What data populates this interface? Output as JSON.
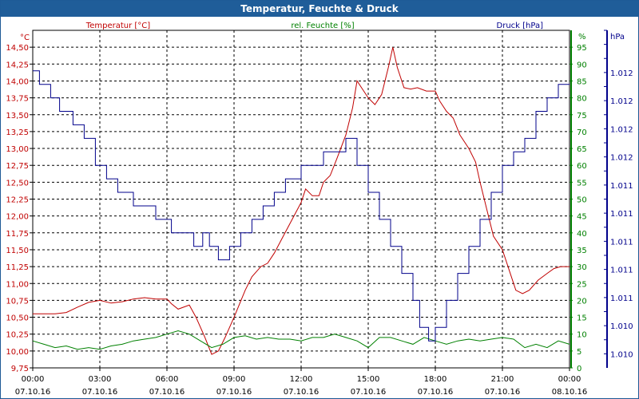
{
  "chart_data": {
    "type": "line",
    "title": "Temperatur, Feuchte & Druck",
    "x_ticks": [
      {
        "time": "00:00",
        "date": "07.10.16"
      },
      {
        "time": "03:00",
        "date": "07.10.16"
      },
      {
        "time": "06:00",
        "date": "07.10.16"
      },
      {
        "time": "09:00",
        "date": "07.10.16"
      },
      {
        "time": "12:00",
        "date": "07.10.16"
      },
      {
        "time": "15:00",
        "date": "07.10.16"
      },
      {
        "time": "18:00",
        "date": "07.10.16"
      },
      {
        "time": "21:00",
        "date": "07.10.16"
      },
      {
        "time": "00:00",
        "date": "08.10.16"
      }
    ],
    "xlim_hours": [
      0,
      24
    ],
    "axes": {
      "temperature": {
        "label": "Temperatur [°C]",
        "unit": "°C",
        "color": "#c00000",
        "ylim": [
          9.75,
          14.75
        ],
        "ticks": [
          "9,75",
          "10,00",
          "10,25",
          "10,50",
          "10,75",
          "11,00",
          "11,25",
          "11,50",
          "11,75",
          "12,00",
          "12,25",
          "12,50",
          "12,75",
          "13,00",
          "13,25",
          "13,50",
          "13,75",
          "14,00",
          "14,25",
          "14,50"
        ]
      },
      "humidity": {
        "label": "rel. Feuchte [%]",
        "unit": "%",
        "color": "#008000",
        "ylim": [
          0,
          100
        ],
        "ticks": [
          "0",
          "5",
          "10",
          "15",
          "20",
          "25",
          "30",
          "35",
          "40",
          "45",
          "50",
          "55",
          "60",
          "65",
          "70",
          "75",
          "80",
          "85",
          "90",
          "95"
        ]
      },
      "pressure": {
        "label": "Druck [hPa]",
        "unit": "hPa",
        "color": "#00008b",
        "ticks": [
          "1.010",
          "1.010",
          "1.011",
          "1.011",
          "1.011",
          "1.011",
          "1.011",
          "1.012",
          "1.012",
          "1.012",
          "1.012"
        ]
      }
    },
    "series": [
      {
        "name": "Temperatur",
        "axis": "temperature",
        "color": "#c00000",
        "points": [
          [
            0,
            10.55
          ],
          [
            1,
            10.55
          ],
          [
            1.5,
            10.57
          ],
          [
            2,
            10.65
          ],
          [
            2.5,
            10.72
          ],
          [
            3,
            10.75
          ],
          [
            3.5,
            10.71
          ],
          [
            4,
            10.73
          ],
          [
            4.5,
            10.77
          ],
          [
            5,
            10.79
          ],
          [
            5.5,
            10.77
          ],
          [
            6,
            10.77
          ],
          [
            6.2,
            10.7
          ],
          [
            6.5,
            10.62
          ],
          [
            7,
            10.68
          ],
          [
            7.3,
            10.5
          ],
          [
            7.7,
            10.2
          ],
          [
            8,
            9.95
          ],
          [
            8.3,
            10.0
          ],
          [
            8.6,
            10.2
          ],
          [
            9,
            10.5
          ],
          [
            9.5,
            10.9
          ],
          [
            9.8,
            11.1
          ],
          [
            10.2,
            11.25
          ],
          [
            10.5,
            11.3
          ],
          [
            10.8,
            11.45
          ],
          [
            11.2,
            11.7
          ],
          [
            11.6,
            11.95
          ],
          [
            12,
            12.2
          ],
          [
            12.2,
            12.4
          ],
          [
            12.5,
            12.3
          ],
          [
            12.8,
            12.3
          ],
          [
            13,
            12.5
          ],
          [
            13.3,
            12.6
          ],
          [
            13.6,
            12.85
          ],
          [
            14,
            13.2
          ],
          [
            14.3,
            13.6
          ],
          [
            14.5,
            14.0
          ],
          [
            14.8,
            13.85
          ],
          [
            15,
            13.75
          ],
          [
            15.3,
            13.65
          ],
          [
            15.6,
            13.8
          ],
          [
            15.9,
            14.2
          ],
          [
            16.1,
            14.5
          ],
          [
            16.3,
            14.2
          ],
          [
            16.6,
            13.9
          ],
          [
            16.9,
            13.88
          ],
          [
            17.2,
            13.9
          ],
          [
            17.6,
            13.85
          ],
          [
            18,
            13.85
          ],
          [
            18.2,
            13.7
          ],
          [
            18.5,
            13.55
          ],
          [
            18.8,
            13.45
          ],
          [
            19.1,
            13.2
          ],
          [
            19.5,
            13.0
          ],
          [
            19.8,
            12.8
          ],
          [
            20,
            12.5
          ],
          [
            20.3,
            12.1
          ],
          [
            20.6,
            11.7
          ],
          [
            21,
            11.5
          ],
          [
            21.3,
            11.2
          ],
          [
            21.6,
            10.9
          ],
          [
            21.9,
            10.85
          ],
          [
            22.2,
            10.9
          ],
          [
            22.6,
            11.05
          ],
          [
            23,
            11.15
          ],
          [
            23.3,
            11.22
          ],
          [
            23.6,
            11.25
          ],
          [
            24,
            11.25
          ]
        ]
      },
      {
        "name": "rel. Feuchte",
        "axis": "humidity",
        "color": "#008000",
        "points": [
          [
            0,
            8
          ],
          [
            0.5,
            7
          ],
          [
            1,
            6
          ],
          [
            1.5,
            6.5
          ],
          [
            2,
            5.5
          ],
          [
            2.5,
            6
          ],
          [
            3,
            5.5
          ],
          [
            3.5,
            6.5
          ],
          [
            4,
            7
          ],
          [
            4.5,
            8
          ],
          [
            5,
            8.5
          ],
          [
            5.5,
            9
          ],
          [
            6,
            10
          ],
          [
            6.5,
            11
          ],
          [
            7,
            10
          ],
          [
            7.5,
            8
          ],
          [
            8,
            6
          ],
          [
            8.5,
            7
          ],
          [
            9,
            9
          ],
          [
            9.5,
            9.5
          ],
          [
            10,
            8.5
          ],
          [
            10.5,
            9
          ],
          [
            11,
            8.5
          ],
          [
            11.5,
            8.5
          ],
          [
            12,
            8
          ],
          [
            12.5,
            9
          ],
          [
            13,
            9
          ],
          [
            13.5,
            10
          ],
          [
            14,
            9
          ],
          [
            14.5,
            8
          ],
          [
            15,
            6
          ],
          [
            15.5,
            9
          ],
          [
            16,
            9
          ],
          [
            16.5,
            8
          ],
          [
            17,
            7
          ],
          [
            17.5,
            9
          ],
          [
            18,
            8
          ],
          [
            18.5,
            7
          ],
          [
            19,
            8
          ],
          [
            19.5,
            8.5
          ],
          [
            20,
            8
          ],
          [
            20.5,
            8.5
          ],
          [
            21,
            9
          ],
          [
            21.5,
            8.5
          ],
          [
            22,
            6
          ],
          [
            22.5,
            7
          ],
          [
            23,
            6
          ],
          [
            23.5,
            8
          ],
          [
            24,
            7
          ]
        ]
      },
      {
        "name": "Druck",
        "axis": "pressure",
        "color": "#00008b",
        "points": [
          [
            0,
            1.0121
          ],
          [
            0.3,
            1.012
          ],
          [
            0.8,
            1.0119
          ],
          [
            1.2,
            1.0118
          ],
          [
            1.8,
            1.0117
          ],
          [
            2.3,
            1.0116
          ],
          [
            2.8,
            1.0114
          ],
          [
            3.3,
            1.0113
          ],
          [
            3.8,
            1.0112
          ],
          [
            4.5,
            1.0111
          ],
          [
            5.5,
            1.011
          ],
          [
            6.2,
            1.0109
          ],
          [
            7.2,
            1.0108
          ],
          [
            7.6,
            1.0109
          ],
          [
            7.9,
            1.0108
          ],
          [
            8.3,
            1.0107
          ],
          [
            8.8,
            1.0108
          ],
          [
            9.3,
            1.0109
          ],
          [
            9.8,
            1.011
          ],
          [
            10.3,
            1.0111
          ],
          [
            10.8,
            1.0112
          ],
          [
            11.3,
            1.0113
          ],
          [
            12,
            1.0114
          ],
          [
            13,
            1.0115
          ],
          [
            14,
            1.0116
          ],
          [
            14.5,
            1.0114
          ],
          [
            15,
            1.0112
          ],
          [
            15.5,
            1.011
          ],
          [
            16,
            1.0108
          ],
          [
            16.5,
            1.0106
          ],
          [
            17,
            1.0104
          ],
          [
            17.3,
            1.0102
          ],
          [
            17.7,
            1.0101
          ],
          [
            18,
            1.0102
          ],
          [
            18.5,
            1.0104
          ],
          [
            19,
            1.0106
          ],
          [
            19.5,
            1.0108
          ],
          [
            20,
            1.011
          ],
          [
            20.5,
            1.0112
          ],
          [
            21,
            1.0114
          ],
          [
            21.5,
            1.0115
          ],
          [
            22,
            1.0116
          ],
          [
            22.5,
            1.0118
          ],
          [
            23,
            1.0119
          ],
          [
            23.5,
            1.012
          ],
          [
            24,
            1.012
          ]
        ]
      }
    ]
  }
}
